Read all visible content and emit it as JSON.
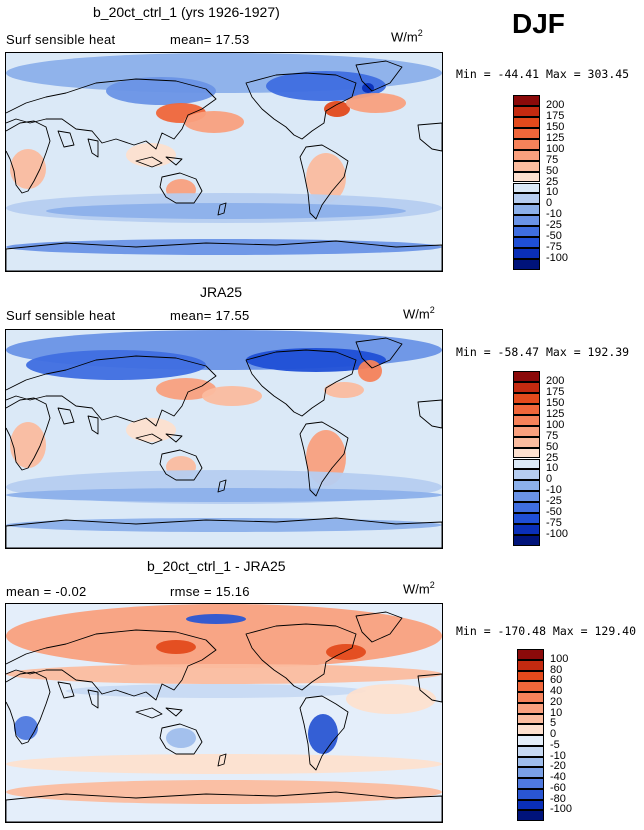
{
  "season": "DJF",
  "units_base": "W/m",
  "units_exp": "2",
  "panels": [
    {
      "title": "b_20ct_ctrl_1 (yrs 1926-1927)",
      "left_text": "Surf sensible heat",
      "mid_text": "mean=  17.53",
      "minmax": "Min = -44.41 Max = 303.45",
      "levels": [
        "200",
        "175",
        "150",
        "125",
        "100",
        "75",
        "50",
        "25",
        "10",
        "0",
        "-10",
        "-25",
        "-50",
        "-75",
        "-100"
      ],
      "colors": [
        "#8b0a0a",
        "#c42a10",
        "#e34a1c",
        "#f0663a",
        "#f6825a",
        "#f9a07e",
        "#fbbc9f",
        "#fde0cf",
        "#dbe9f7",
        "#b6cdf0",
        "#8cb0ea",
        "#6a93e6",
        "#3f6ee0",
        "#1f4fd6",
        "#0a2fb8",
        "#00137a"
      ],
      "variant": "model"
    },
    {
      "title": "JRA25",
      "left_text": "Surf sensible heat",
      "mid_text": "mean=  17.55",
      "minmax": "Min = -58.47 Max = 192.39",
      "levels": [
        "200",
        "175",
        "150",
        "125",
        "100",
        "75",
        "50",
        "25",
        "10",
        "0",
        "-10",
        "-25",
        "-50",
        "-75",
        "-100"
      ],
      "colors": [
        "#8b0a0a",
        "#c42a10",
        "#e34a1c",
        "#f0663a",
        "#f6825a",
        "#f9a07e",
        "#fbbc9f",
        "#fde0cf",
        "#dbe9f7",
        "#b6cdf0",
        "#8cb0ea",
        "#6a93e6",
        "#3f6ee0",
        "#1f4fd6",
        "#0a2fb8",
        "#00137a"
      ],
      "variant": "obs"
    },
    {
      "title": "b_20ct_ctrl_1 - JRA25",
      "left_text": "mean =  -0.02",
      "mid_text": "rmse =  15.16",
      "minmax": "Min = -170.48 Max = 129.40",
      "levels": [
        "100",
        "80",
        "60",
        "40",
        "20",
        "10",
        "5",
        "0",
        "-5",
        "-10",
        "-20",
        "-40",
        "-60",
        "-80",
        "-100"
      ],
      "colors": [
        "#8b0a0a",
        "#c42a10",
        "#e34a1c",
        "#f0663a",
        "#f6825a",
        "#f9a07e",
        "#fbbc9f",
        "#fde0cf",
        "#e4eefa",
        "#c7d9f3",
        "#9fbdec",
        "#7aa0e6",
        "#4f79df",
        "#2a56d3",
        "#0a2fb8",
        "#00137a"
      ],
      "variant": "diff"
    }
  ]
}
